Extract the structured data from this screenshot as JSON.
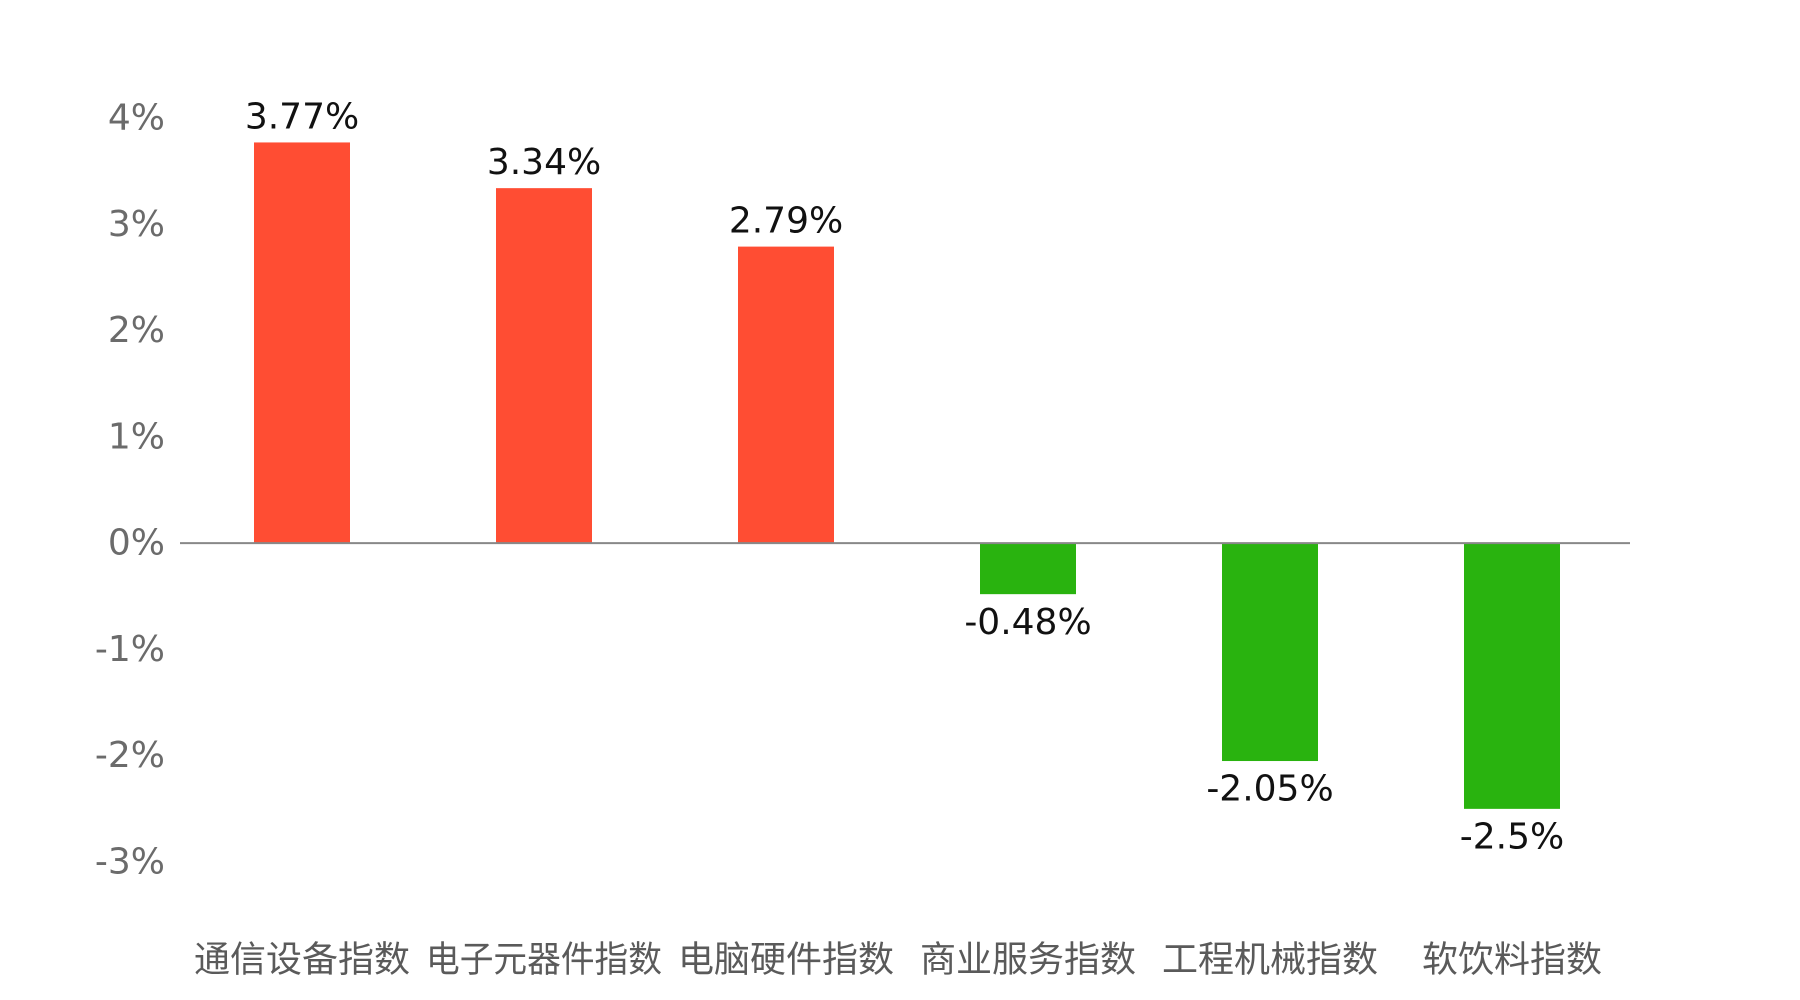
{
  "chart_data": {
    "type": "bar",
    "title": "",
    "xlabel": "",
    "ylabel": "",
    "categories": [
      "通信设备指数",
      "电子元器件指数",
      "电脑硬件指数",
      "商业服务指数",
      "工程机械指数",
      "软饮料指数"
    ],
    "values": [
      3.77,
      3.34,
      2.79,
      -0.48,
      -2.05,
      -2.5
    ],
    "data_labels": [
      "3.77%",
      "3.34%",
      "2.79%",
      "-0.48%",
      "-2.05%",
      "-2.5%"
    ],
    "ylim": [
      -3,
      4
    ],
    "y_ticks": [
      4,
      3,
      2,
      1,
      0,
      -1,
      -2,
      -3
    ],
    "y_tick_labels": [
      "4%",
      "3%",
      "2%",
      "1%",
      "0%",
      "-1%",
      "-2%",
      "-3%"
    ],
    "grid": false,
    "legend": "none",
    "colors": {
      "positive": "#FF4D33",
      "negative": "#29B30F",
      "axis": "#888888"
    }
  }
}
